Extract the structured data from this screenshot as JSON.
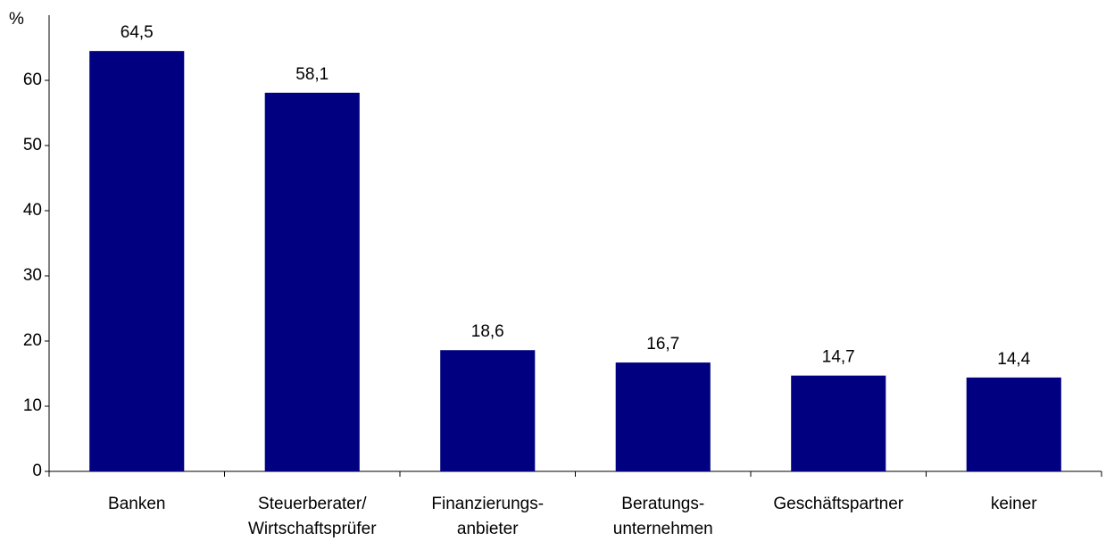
{
  "chart_data": {
    "type": "bar",
    "y_label": "%",
    "categories": [
      "Banken",
      "Steuerberater/\nWirtschaftsprüfer",
      "Finanzierungs-\nanbieter",
      "Beratungs-\nunternehmen",
      "Geschäftspartner",
      "keiner"
    ],
    "values": [
      64.5,
      58.1,
      18.6,
      16.7,
      14.7,
      14.4
    ],
    "value_labels": [
      "64,5",
      "58,1",
      "18,6",
      "16,7",
      "14,7",
      "14,4"
    ],
    "color": "#000080",
    "ylim": [
      0,
      70
    ],
    "yticks": [
      0,
      10,
      20,
      30,
      40,
      50,
      60
    ],
    "grid": false
  }
}
